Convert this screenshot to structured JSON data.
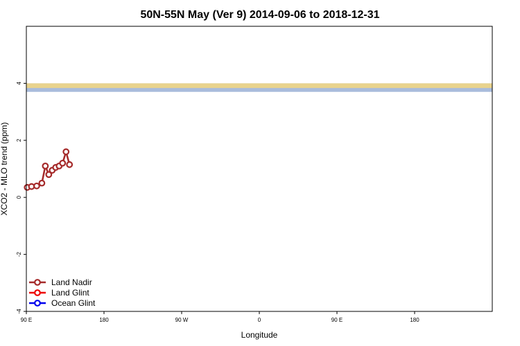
{
  "chart_data": {
    "type": "line",
    "title": "50N-55N May (Ver 9)   2014-09-06 to 2018-12-31",
    "xlabel": "Longitude",
    "ylabel": "XCO2 - MLO trend (ppm)",
    "xlim": [
      -90,
      180
    ],
    "ylim": [
      -4,
      6
    ],
    "x_ticks": [
      {
        "value": -90,
        "label": "90 E"
      },
      {
        "value": -45,
        "label": "180"
      },
      {
        "value": 0,
        "label": "90 W"
      },
      {
        "value": 45,
        "label": "0"
      },
      {
        "value": 90,
        "label": "90 E"
      },
      {
        "value": 135,
        "label": "180"
      }
    ],
    "y_ticks": [
      {
        "value": -4,
        "label": "-4"
      },
      {
        "value": -2,
        "label": "-2"
      },
      {
        "value": 0,
        "label": "0"
      },
      {
        "value": 2,
        "label": "2"
      },
      {
        "value": 4,
        "label": "4"
      }
    ],
    "grid": false,
    "legend_position": "bottom-left",
    "map_strip": {
      "y_range": [
        3.7,
        4.0
      ],
      "land_color": "#f5d77f",
      "ocean_color": "#a9bcdc"
    },
    "series": [
      {
        "name": "Land Nadir",
        "color": "#a52a2a",
        "x": [
          -89.5,
          -87,
          -84,
          -81,
          -79,
          -77,
          -75,
          -73,
          -71,
          -69,
          -67,
          -65,
          -53,
          -51.5,
          -49.5,
          -48,
          -46.5,
          -45,
          -43.5,
          -41.5,
          -39.5,
          -37.5,
          -35.5,
          -33.5,
          -31.5,
          -29.5,
          -27.5,
          -25.5,
          -23.5,
          -21.5,
          -19.5,
          -17.5,
          -15.5,
          -13.5,
          -11.5,
          -9.5,
          -7.5,
          -5.5,
          -3.5,
          -1.5,
          0.5,
          2.5,
          4.5,
          6.5,
          8.5,
          10.5,
          12.5,
          14.5,
          16.5,
          18.5,
          20.5,
          22.5,
          24.5,
          26.5,
          28.5,
          30.5,
          32.5,
          34.5,
          36.5,
          38.5,
          40.5,
          42.5,
          44.5,
          46.5,
          48.5,
          50.5,
          52.5,
          54.5,
          56.5,
          58.5,
          60.5,
          62.5,
          64.5,
          66.5,
          68.5,
          70.5,
          72.5,
          74.5,
          76.5,
          78.5,
          80.5,
          82.5,
          84.5,
          86.5,
          88.5,
          90.5,
          92.5,
          94.5,
          96.5,
          98.5,
          100.5,
          102.5,
          104.5,
          106.5,
          108.5,
          110.5,
          112.5,
          114.5,
          116.5,
          118.5,
          120.5,
          122.5,
          124.5,
          126.5,
          128.5,
          130.5,
          132.5,
          134.5,
          136.5,
          138.5,
          140.5,
          142.5,
          144.5,
          146.5,
          148.5,
          150.5,
          152.5,
          154.5,
          156.5,
          158.5,
          160.5,
          162.5,
          164.5,
          166.5,
          168.5,
          170.5,
          172.5,
          174.5,
          176.5,
          178.5
        ],
        "y": [
          0.35,
          0.38,
          0.4,
          0.5,
          1.1,
          0.8,
          0.95,
          1.05,
          1.1,
          1.2,
          1.6,
          1.15,
          null,
          null,
          null,
          null,
          null,
          null,
          null,
          null,
          null,
          null,
          null,
          null,
          null,
          null,
          null,
          null,
          null,
          null,
          null,
          null,
          null,
          null,
          null,
          null,
          null,
          null,
          null,
          null,
          null,
          null,
          null,
          null,
          null,
          null,
          null,
          null,
          null,
          null,
          null,
          null,
          null,
          null,
          null,
          null,
          null,
          null,
          null,
          null,
          null,
          null,
          null,
          null,
          null,
          null,
          null,
          null,
          null,
          null,
          null,
          null,
          null,
          null,
          null,
          null,
          null,
          null,
          null,
          null,
          null,
          null,
          null,
          null,
          null,
          null,
          null,
          null,
          null,
          null,
          null,
          null,
          null,
          null,
          null,
          null,
          null,
          null,
          null,
          null,
          null,
          null,
          null,
          null,
          null,
          null,
          null,
          null,
          null,
          null,
          null,
          null,
          null,
          null,
          null,
          null,
          null,
          null,
          null,
          null,
          null,
          null,
          null,
          null,
          null,
          null,
          null,
          null,
          null,
          null
        ]
      }
    ]
  },
  "legend": {
    "items": [
      {
        "name": "Land Nadir",
        "color": "#a52a2a"
      },
      {
        "name": "Land Glint",
        "color": "#ee0000"
      },
      {
        "name": "Ocean Glint",
        "color": "#0000ee"
      }
    ]
  }
}
